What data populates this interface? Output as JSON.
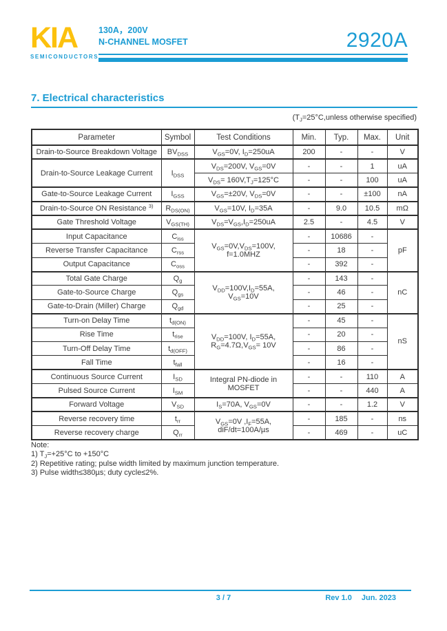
{
  "colors": {
    "accent": "#1b9cd4",
    "logo_yellow": "#fcc10e",
    "text": "#333333"
  },
  "header": {
    "logo": "KIA",
    "logo_sub": "SEMICONDUCTORS",
    "rating_line": "130A，200V",
    "device_type": "N-CHANNEL MOSFET",
    "part_number": "2920A"
  },
  "section": {
    "title": "7.  Electrical characteristics",
    "condition_note": "(T~J~=25°C,unless otherwise specified)"
  },
  "table": {
    "headers": [
      "Parameter",
      "Symbol",
      "Test Conditions",
      "Min.",
      "Typ.",
      "Max.",
      "Unit"
    ],
    "rows": [
      {
        "p": "Drain-to-Source Breakdown Voltage",
        "s": "BV~DSS~",
        "c": "V~GS~=0V, I~D~=250uA",
        "min": "200",
        "typ": "-",
        "max": "-",
        "u": "V"
      },
      {
        "p": "Drain-to-Source Leakage Current",
        "s": "I~DSS~",
        "c": "V~DS~=200V, V~GS~=0V",
        "min": "-",
        "typ": "-",
        "max": "1",
        "u": "uA"
      },
      {
        "c": "V~DS~= 160V,T~J~=125°C",
        "min": "-",
        "typ": "-",
        "max": "100",
        "u": "uA"
      },
      {
        "p": "Gate-to-Source Leakage Current",
        "s": "I~GSS~",
        "c": "V~GS~=±20V, V~DS~=0V",
        "min": "-",
        "typ": "-",
        "max": "±100",
        "u": "nA"
      },
      {
        "p": "Drain-to-Source ON Resistance ^3)^",
        "s": "R~DS(ON)~",
        "c": "V~GS~=10V, I~D~=35A",
        "min": "-",
        "typ": "9.0",
        "max": "10.5",
        "u": "mΩ"
      },
      {
        "p": "Gate Threshold Voltage",
        "s": "V~GS(TH)~",
        "c": "V~DS~=V~GS~,I~D~=250uA",
        "min": "2.5",
        "typ": "-",
        "max": "4.5",
        "u": "V"
      },
      {
        "p": "Input Capacitance",
        "s": "C~iss~",
        "c": "V~GS~=0V,V~DS~=100V,\nf=1.0MHZ",
        "min": "-",
        "typ": "10686",
        "max": "-",
        "u": "pF"
      },
      {
        "p": "Reverse Transfer Capacitance",
        "s": "C~rss~",
        "min": "-",
        "typ": "18",
        "max": "-"
      },
      {
        "p": "Output Capacitance",
        "s": "C~oss~",
        "min": "-",
        "typ": "392",
        "max": "-"
      },
      {
        "p": "Total Gate Charge",
        "s": "Q~g~",
        "c": "V~DD~=100V,I~D~=55A,\nV~GS~=10V",
        "min": "-",
        "typ": "143",
        "max": "-",
        "u": "nC"
      },
      {
        "p": "Gate-to-Source Charge",
        "s": "Q~gs~",
        "min": "-",
        "typ": "46",
        "max": "-"
      },
      {
        "p": "Gate-to-Drain (Miller) Charge",
        "s": "Q~gd~",
        "min": "-",
        "typ": "25",
        "max": "-"
      },
      {
        "p": "Turn-on Delay Time",
        "s": "t~d(ON)~",
        "c": "V~DD~=100V, I~D~=55A,\nR~G~=4.7Ω,V~GS~= 10V",
        "min": "-",
        "typ": "45",
        "max": "-",
        "u": "nS"
      },
      {
        "p": "Rise Time",
        "s": "t~rise~",
        "min": "-",
        "typ": "20",
        "max": "-"
      },
      {
        "p": "Turn-Off Delay Time",
        "s": "t~d(OFF)~",
        "min": "-",
        "typ": "86",
        "max": "-"
      },
      {
        "p": "Fall Time",
        "s": "t~fall~",
        "min": "-",
        "typ": "16",
        "max": "-"
      },
      {
        "p": "Continuous Source Current",
        "s": "I~SD~",
        "c": "Integral PN-diode in\nMOSFET",
        "min": "-",
        "typ": "-",
        "max": "110",
        "u": "A"
      },
      {
        "p": "Pulsed Source Current",
        "s": "I~SM~",
        "min": "-",
        "typ": "-",
        "max": "440",
        "u": "A"
      },
      {
        "p": "Forward Voltage",
        "s": "V~SD~",
        "c": "I~S~=70A, V~GS~=0V",
        "min": "-",
        "typ": "-",
        "max": "1.2",
        "u": "V"
      },
      {
        "p": "Reverse recovery time",
        "s": "t~rr~",
        "c": "V~GS~=0V ,I~F~=55A,\ndiF/dt=100A/µs",
        "min": "-",
        "typ": "185",
        "max": "-",
        "u": "ns"
      },
      {
        "p": "Reverse recovery charge",
        "s": "Q~rr~",
        "min": "-",
        "typ": "469",
        "max": "-",
        "u": "uC"
      }
    ]
  },
  "notes": {
    "title": "Note:",
    "items": [
      "1) T~J~=+25°C to +150°C",
      "2) Repetitive rating; pulse width limited by maximum junction temperature.",
      "3) Pulse width≤380µs; duty cycle≤2%."
    ]
  },
  "footer": {
    "page": "3 / 7",
    "rev": "Rev 1.0",
    "date": "Jun. 2023"
  }
}
